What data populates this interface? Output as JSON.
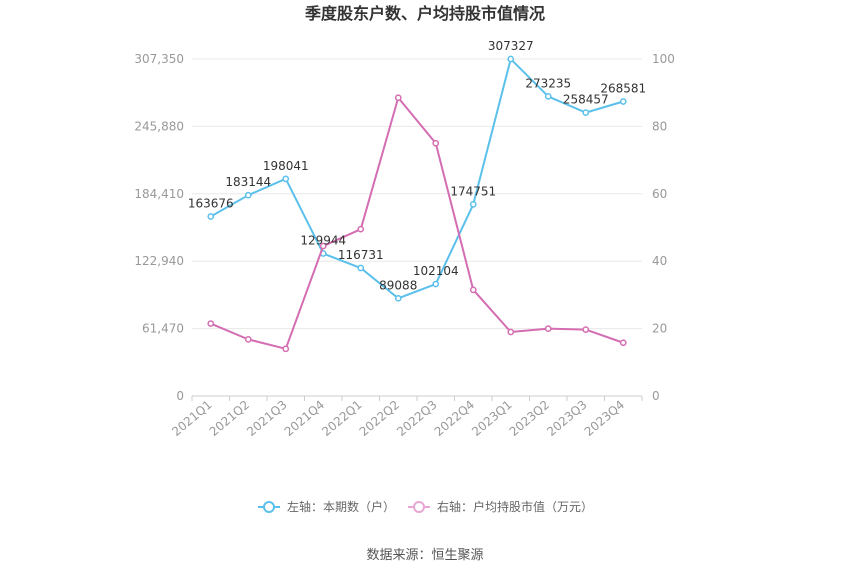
{
  "chart_data": {
    "type": "line",
    "title": "季度股东户数、户均持股市值情况",
    "categories": [
      "2021Q1",
      "2021Q2",
      "2021Q3",
      "2021Q4",
      "2022Q1",
      "2022Q2",
      "2022Q3",
      "2022Q4",
      "2023Q1",
      "2023Q2",
      "2023Q3",
      "2023Q4"
    ],
    "left_axis": {
      "ylim": [
        0,
        307350
      ],
      "ticks": [
        0,
        61470,
        122940,
        184410,
        245880,
        307350
      ],
      "tick_labels": [
        "0",
        "61,470",
        "122,940",
        "184,410",
        "245,880",
        "307,350"
      ]
    },
    "right_axis": {
      "ylim": [
        0,
        100
      ],
      "ticks": [
        0,
        20,
        40,
        60,
        80,
        100
      ],
      "tick_labels": [
        "0",
        "20",
        "40",
        "60",
        "80",
        "100"
      ]
    },
    "grid": true,
    "legend_position": "bottom",
    "series": [
      {
        "name": "左轴：本期数（户）",
        "axis": "left",
        "color": "#5bc0eb",
        "values": [
          163676,
          183144,
          198041,
          129944,
          116731,
          89088,
          102104,
          174751,
          307327,
          273235,
          258457,
          268581
        ],
        "labels": [
          "163676",
          "183144",
          "198041",
          "129944",
          "116731",
          "89088",
          "102104",
          "174751",
          "307327",
          "273235",
          "258457",
          "268581"
        ]
      },
      {
        "name": "右轴：户均持股市值（万元）",
        "axis": "right",
        "color": "#d46db2",
        "values": [
          21.5,
          16.8,
          14.0,
          44.5,
          49.5,
          88.5,
          75.0,
          31.5,
          19.0,
          20.0,
          19.7,
          15.8
        ]
      }
    ]
  },
  "footer": {
    "source": "数据来源：恒生聚源"
  }
}
